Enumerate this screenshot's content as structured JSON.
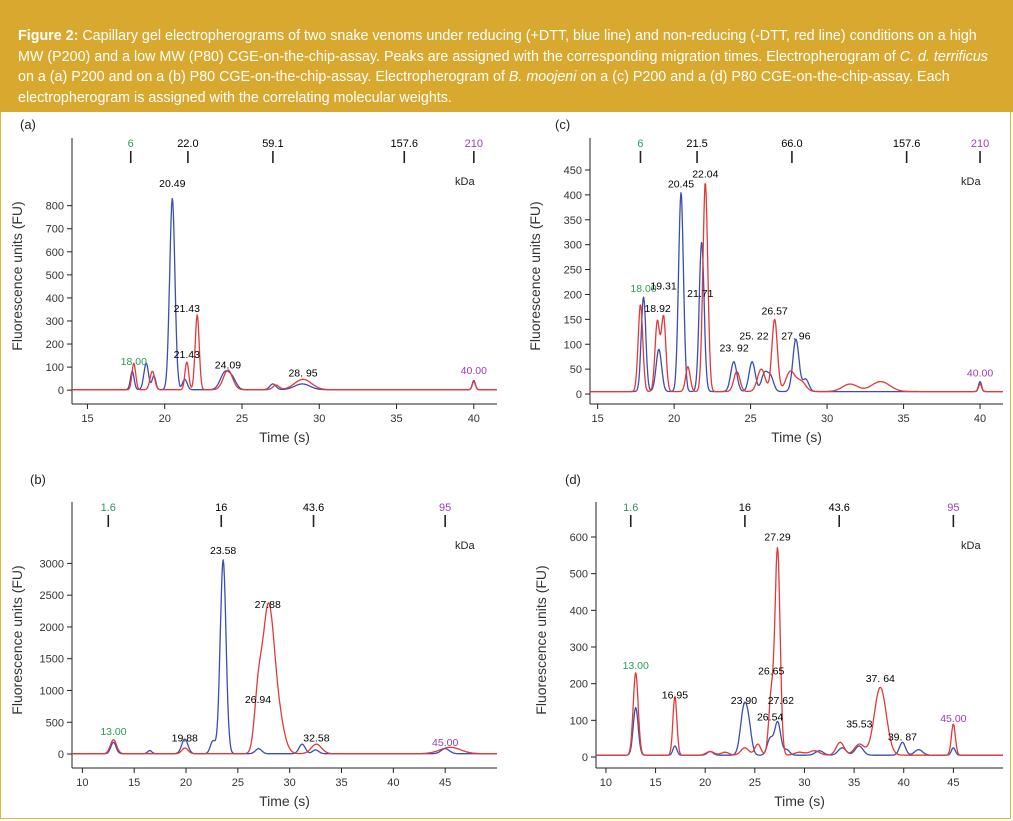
{
  "caption": {
    "label": "Figure 2:",
    "p1": " Capillary gel electropherograms of two snake venoms under reducing (+DTT, blue line) and non-reducing (-DTT, red line) conditions on a high MW (P200) and a low MW (P80) CGE-on-the-chip-assay. Peaks are assigned with the corresponding migration times. Electropherogram of ",
    "species1": "C. d. terrificus",
    "p2": " on a (a) P200 and on a (b) P80 CGE-on-the-chip-assay. Electropherogram of ",
    "species2": "B. moojeni",
    "p3": " on a (c) P200 and a (d) P80 CGE-on-the-chip-assay. Each electropherogram is assigned with the correlating molecular weights."
  },
  "colors": {
    "reducing": "#3a4fb0",
    "nonreducing": "#e23a3a",
    "marker_low": "#2a9a5a",
    "marker_high": "#9b3fb5",
    "caption_bg": "#d9a92f"
  },
  "chart_data": [
    {
      "type": "line",
      "panel_label": "(a)",
      "xlabel": "Time (s)",
      "ylabel": "Fluorescence units (FU)",
      "xlim": [
        14,
        41.5
      ],
      "ylim": [
        -60,
        920
      ],
      "xticks": [
        15,
        20,
        25,
        30,
        35,
        40
      ],
      "yticks": [
        0,
        100,
        200,
        300,
        400,
        500,
        600,
        700,
        800
      ],
      "mw_unit": "kDa",
      "mw_markers": [
        {
          "time": 17.8,
          "label": "6",
          "color": "marker_low"
        },
        {
          "time": 21.5,
          "label": "22.0",
          "color": "black"
        },
        {
          "time": 27.0,
          "label": "59.1",
          "color": "black"
        },
        {
          "time": 35.5,
          "label": "157.6",
          "color": "black"
        },
        {
          "time": 40.0,
          "label": "210",
          "color": "marker_high"
        }
      ],
      "peak_labels": [
        {
          "x": 18.0,
          "y": 110,
          "text": "18.00",
          "color": "marker_low"
        },
        {
          "x": 20.49,
          "y": 880,
          "text": "20.49",
          "color": "black"
        },
        {
          "x": 21.43,
          "y": 340,
          "text": "21.43",
          "color": "black"
        },
        {
          "x": 21.43,
          "y": 140,
          "text": "21.43",
          "color": "black"
        },
        {
          "x": 24.09,
          "y": 95,
          "text": "24.09",
          "color": "black"
        },
        {
          "x": 28.95,
          "y": 60,
          "text": "28. 95",
          "color": "black"
        },
        {
          "x": 40.0,
          "y": 70,
          "text": "40.00",
          "color": "marker_high"
        }
      ],
      "series": [
        {
          "name": "+DTT",
          "color": "reducing",
          "baseline": 2,
          "peaks": [
            [
              17.9,
              80,
              0.12
            ],
            [
              18.8,
              115,
              0.15
            ],
            [
              19.3,
              60,
              0.12
            ],
            [
              20.49,
              830,
              0.17
            ],
            [
              21.3,
              45,
              0.15
            ],
            [
              23.9,
              75,
              0.3
            ],
            [
              24.4,
              40,
              0.25
            ],
            [
              27.0,
              25,
              0.2
            ],
            [
              28.9,
              25,
              0.5
            ],
            [
              40.0,
              40,
              0.1
            ]
          ]
        },
        {
          "name": "-DTT",
          "color": "nonreducing",
          "baseline": 2,
          "peaks": [
            [
              18.0,
              115,
              0.12
            ],
            [
              19.2,
              80,
              0.15
            ],
            [
              21.43,
              120,
              0.12
            ],
            [
              22.1,
              325,
              0.13
            ],
            [
              24.09,
              85,
              0.3
            ],
            [
              27.2,
              20,
              0.2
            ],
            [
              28.95,
              45,
              0.55
            ],
            [
              40.0,
              35,
              0.1
            ]
          ]
        }
      ]
    },
    {
      "type": "line",
      "panel_label": "(b)",
      "xlabel": "Time (s)",
      "ylabel": "Fluorescence units (FU)",
      "xlim": [
        9,
        50
      ],
      "ylim": [
        -220,
        3400
      ],
      "xticks": [
        10,
        15,
        20,
        25,
        30,
        35,
        40,
        45
      ],
      "yticks": [
        0,
        500,
        1000,
        1500,
        2000,
        2500,
        3000
      ],
      "mw_unit": "kDa",
      "mw_markers": [
        {
          "time": 12.5,
          "label": "1.6",
          "color": "marker_low"
        },
        {
          "time": 23.4,
          "label": "16",
          "color": "black"
        },
        {
          "time": 32.3,
          "label": "43.6",
          "color": "black"
        },
        {
          "time": 45.0,
          "label": "95",
          "color": "marker_high"
        }
      ],
      "peak_labels": [
        {
          "x": 13.0,
          "y": 300,
          "text": "13.00",
          "color": "marker_low"
        },
        {
          "x": 19.88,
          "y": 200,
          "text": "19.88",
          "color": "black"
        },
        {
          "x": 23.58,
          "y": 3150,
          "text": "23.58",
          "color": "black"
        },
        {
          "x": 26.94,
          "y": 800,
          "text": "26.94",
          "color": "black"
        },
        {
          "x": 27.88,
          "y": 2300,
          "text": "27.88",
          "color": "black"
        },
        {
          "x": 32.58,
          "y": 200,
          "text": "32.58",
          "color": "black"
        },
        {
          "x": 45.0,
          "y": 130,
          "text": "45.00",
          "color": "marker_high"
        }
      ],
      "series": [
        {
          "name": "+DTT",
          "color": "reducing",
          "baseline": 5,
          "peaks": [
            [
              13.0,
              180,
              0.25
            ],
            [
              16.5,
              50,
              0.2
            ],
            [
              19.88,
              230,
              0.3
            ],
            [
              22.6,
              200,
              0.25
            ],
            [
              23.58,
              3050,
              0.28
            ],
            [
              27.0,
              80,
              0.3
            ],
            [
              31.2,
              150,
              0.3
            ],
            [
              32.5,
              60,
              0.3
            ],
            [
              45.0,
              80,
              0.4
            ]
          ]
        },
        {
          "name": "-DTT",
          "color": "nonreducing",
          "baseline": 5,
          "peaks": [
            [
              13.0,
              220,
              0.3
            ],
            [
              19.9,
              90,
              0.3
            ],
            [
              26.94,
              780,
              0.35
            ],
            [
              27.9,
              2150,
              0.55
            ],
            [
              28.8,
              600,
              0.6
            ],
            [
              32.58,
              150,
              0.5
            ],
            [
              45.5,
              100,
              1.0
            ]
          ]
        }
      ]
    },
    {
      "type": "line",
      "panel_label": "(c)",
      "xlabel": "Time (s)",
      "ylabel": "Fluorescence units (FU)",
      "xlim": [
        14.5,
        41.5
      ],
      "ylim": [
        -20,
        460
      ],
      "xticks": [
        15,
        20,
        25,
        30,
        35,
        40
      ],
      "yticks": [
        0,
        50,
        100,
        150,
        200,
        250,
        300,
        350,
        400,
        450
      ],
      "mw_unit": "kDa",
      "mw_markers": [
        {
          "time": 17.8,
          "label": "6",
          "color": "marker_low"
        },
        {
          "time": 21.5,
          "label": "21.5",
          "color": "black"
        },
        {
          "time": 27.7,
          "label": "66.0",
          "color": "black"
        },
        {
          "time": 35.2,
          "label": "157.6",
          "color": "black"
        },
        {
          "time": 40.0,
          "label": "210",
          "color": "marker_high"
        }
      ],
      "peak_labels": [
        {
          "x": 18.0,
          "y": 205,
          "text": "18.00",
          "color": "marker_low"
        },
        {
          "x": 18.92,
          "y": 165,
          "text": "18.92",
          "color": "black"
        },
        {
          "x": 19.31,
          "y": 210,
          "text": "19.31",
          "color": "black"
        },
        {
          "x": 20.45,
          "y": 415,
          "text": "20.45",
          "color": "black"
        },
        {
          "x": 21.71,
          "y": 195,
          "text": "21.71",
          "color": "black"
        },
        {
          "x": 22.04,
          "y": 435,
          "text": "22.04",
          "color": "black"
        },
        {
          "x": 23.92,
          "y": 85,
          "text": "23. 92",
          "color": "black"
        },
        {
          "x": 25.22,
          "y": 110,
          "text": "25. 22",
          "color": "black"
        },
        {
          "x": 26.57,
          "y": 160,
          "text": "26.57",
          "color": "black"
        },
        {
          "x": 27.96,
          "y": 110,
          "text": "27. 96",
          "color": "black"
        },
        {
          "x": 40.0,
          "y": 35,
          "text": "40.00",
          "color": "marker_high"
        }
      ],
      "series": [
        {
          "name": "+DTT",
          "color": "reducing",
          "baseline": 5,
          "peaks": [
            [
              18.0,
              190,
              0.15
            ],
            [
              19.0,
              85,
              0.18
            ],
            [
              20.45,
              400,
              0.16
            ],
            [
              21.8,
              300,
              0.16
            ],
            [
              23.9,
              60,
              0.2
            ],
            [
              25.1,
              60,
              0.2
            ],
            [
              25.9,
              35,
              0.2
            ],
            [
              26.3,
              30,
              0.2
            ],
            [
              27.96,
              105,
              0.2
            ],
            [
              28.6,
              25,
              0.2
            ],
            [
              40.0,
              20,
              0.1
            ]
          ]
        },
        {
          "name": "-DTT",
          "color": "nonreducing",
          "baseline": 5,
          "peaks": [
            [
              17.8,
              175,
              0.15
            ],
            [
              18.9,
              140,
              0.15
            ],
            [
              19.31,
              150,
              0.15
            ],
            [
              20.9,
              50,
              0.15
            ],
            [
              22.04,
              420,
              0.16
            ],
            [
              24.1,
              40,
              0.2
            ],
            [
              25.7,
              45,
              0.25
            ],
            [
              26.57,
              145,
              0.18
            ],
            [
              27.6,
              40,
              0.3
            ],
            [
              28.3,
              20,
              0.3
            ],
            [
              31.5,
              15,
              0.5
            ],
            [
              33.5,
              20,
              0.6
            ],
            [
              40.0,
              15,
              0.1
            ]
          ]
        }
      ]
    },
    {
      "type": "line",
      "panel_label": "(d)",
      "xlabel": "Time (s)",
      "ylabel": "Fluorescence units (FU)",
      "xlim": [
        9,
        50
      ],
      "ylim": [
        -30,
        660
      ],
      "xticks": [
        10,
        15,
        20,
        25,
        30,
        35,
        40,
        45
      ],
      "yticks": [
        0,
        100,
        200,
        300,
        400,
        500,
        600
      ],
      "mw_unit": "kDa",
      "mw_markers": [
        {
          "time": 12.5,
          "label": "1.6",
          "color": "marker_low"
        },
        {
          "time": 24.0,
          "label": "16",
          "color": "black"
        },
        {
          "time": 33.5,
          "label": "43.6",
          "color": "black"
        },
        {
          "time": 45.0,
          "label": "95",
          "color": "marker_high"
        }
      ],
      "peak_labels": [
        {
          "x": 13.0,
          "y": 240,
          "text": "13.00",
          "color": "marker_low"
        },
        {
          "x": 16.95,
          "y": 160,
          "text": "16.95",
          "color": "black"
        },
        {
          "x": 23.9,
          "y": 145,
          "text": "23.90",
          "color": "black"
        },
        {
          "x": 26.54,
          "y": 100,
          "text": "26.54",
          "color": "black"
        },
        {
          "x": 26.65,
          "y": 225,
          "text": "26.65",
          "color": "black"
        },
        {
          "x": 27.29,
          "y": 590,
          "text": "27.29",
          "color": "black"
        },
        {
          "x": 27.62,
          "y": 145,
          "text": "27.62",
          "color": "black"
        },
        {
          "x": 35.53,
          "y": 80,
          "text": "35.53",
          "color": "black"
        },
        {
          "x": 37.64,
          "y": 205,
          "text": "37. 64",
          "color": "black"
        },
        {
          "x": 39.87,
          "y": 45,
          "text": "39. 87",
          "color": "black"
        },
        {
          "x": 45.0,
          "y": 95,
          "text": "45.00",
          "color": "marker_high"
        }
      ],
      "series": [
        {
          "name": "+DTT",
          "color": "reducing",
          "baseline": 5,
          "peaks": [
            [
              13.0,
              130,
              0.25
            ],
            [
              16.95,
              25,
              0.2
            ],
            [
              20.5,
              10,
              0.3
            ],
            [
              23.9,
              125,
              0.35
            ],
            [
              24.4,
              60,
              0.3
            ],
            [
              26.54,
              45,
              0.3
            ],
            [
              27.3,
              90,
              0.3
            ],
            [
              28.2,
              15,
              0.3
            ],
            [
              31.5,
              12,
              0.4
            ],
            [
              33.8,
              20,
              0.4
            ],
            [
              35.5,
              25,
              0.4
            ],
            [
              39.87,
              35,
              0.3
            ],
            [
              41.5,
              15,
              0.4
            ],
            [
              45.0,
              20,
              0.2
            ]
          ]
        },
        {
          "name": "-DTT",
          "color": "nonreducing",
          "baseline": 5,
          "peaks": [
            [
              13.0,
              225,
              0.25
            ],
            [
              16.95,
              160,
              0.2
            ],
            [
              20.5,
              10,
              0.4
            ],
            [
              22.0,
              8,
              0.4
            ],
            [
              24.0,
              20,
              0.4
            ],
            [
              25.3,
              30,
              0.3
            ],
            [
              26.65,
              160,
              0.25
            ],
            [
              27.29,
              560,
              0.26
            ],
            [
              29.5,
              8,
              0.5
            ],
            [
              31.0,
              12,
              0.5
            ],
            [
              33.6,
              35,
              0.4
            ],
            [
              35.53,
              30,
              0.5
            ],
            [
              37.64,
              185,
              0.6
            ],
            [
              45.0,
              85,
              0.2
            ]
          ]
        }
      ]
    }
  ]
}
